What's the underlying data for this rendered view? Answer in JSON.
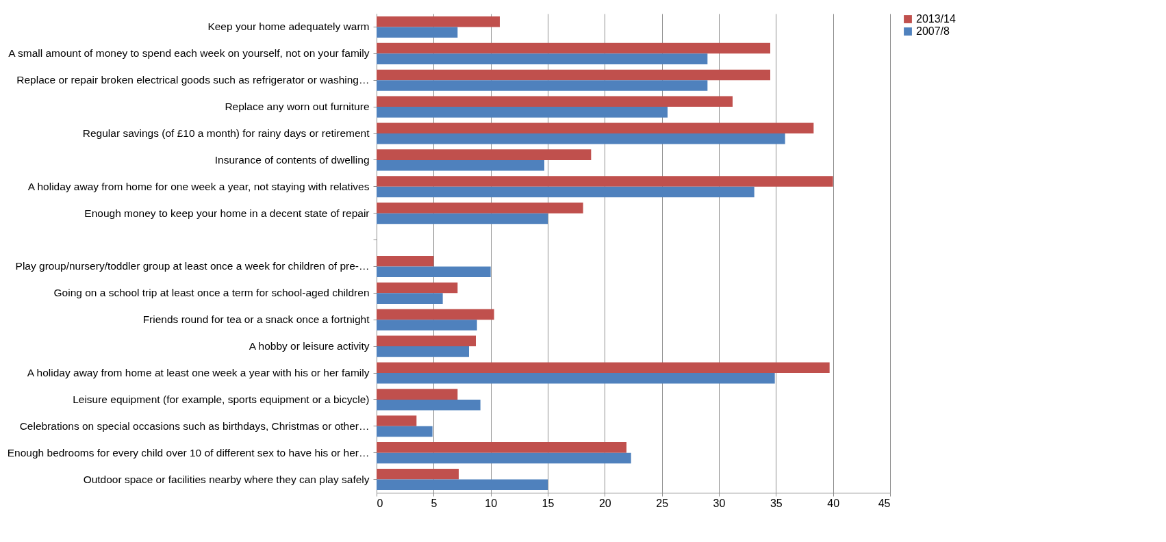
{
  "chart_data": {
    "type": "bar",
    "orientation": "horizontal",
    "categories": [
      "Keep your home adequately warm",
      "A small amount of money to spend each week on yourself, not on your family",
      "Replace or repair broken electrical goods such as refrigerator or washing…",
      "Replace any worn out furniture",
      "Regular savings (of £10 a month) for rainy days or retirement",
      "Insurance of contents of dwelling",
      "A holiday away from home for one week a year, not staying with relatives",
      "Enough money to keep your home in a decent state of repair",
      null,
      "Play group/nursery/toddler group at least once a week for children of pre-…",
      "Going on a school trip at least once a term for school-aged children",
      "Friends round for tea or a snack once a fortnight",
      "A hobby or leisure activity",
      "A holiday away from home at least one week a year with his or her family",
      "Leisure equipment (for example, sports equipment or a bicycle)",
      "Celebrations on special occasions such as birthdays, Christmas or other…",
      "Enough bedrooms for every child over 10 of different sex to have his or her…",
      "Outdoor space or facilities nearby where they can play safely"
    ],
    "series": [
      {
        "name": "2013/14",
        "color": "#c0504d",
        "values": [
          10.8,
          34.5,
          34.5,
          31.2,
          38.3,
          18.8,
          40,
          18.1,
          null,
          5,
          7.1,
          10.3,
          8.7,
          39.7,
          7.1,
          3.5,
          21.9,
          7.2
        ]
      },
      {
        "name": "2007/8",
        "color": "#4f81bd",
        "values": [
          7.1,
          29,
          29,
          25.5,
          35.8,
          14.7,
          33.1,
          15,
          null,
          10,
          5.8,
          8.8,
          8.1,
          34.9,
          9.1,
          4.9,
          22.3,
          15
        ]
      }
    ],
    "xlim": [
      0,
      45
    ],
    "xticks": [
      0,
      5,
      10,
      15,
      20,
      25,
      30,
      35,
      40,
      45
    ],
    "grid": "x",
    "legend": "right"
  }
}
